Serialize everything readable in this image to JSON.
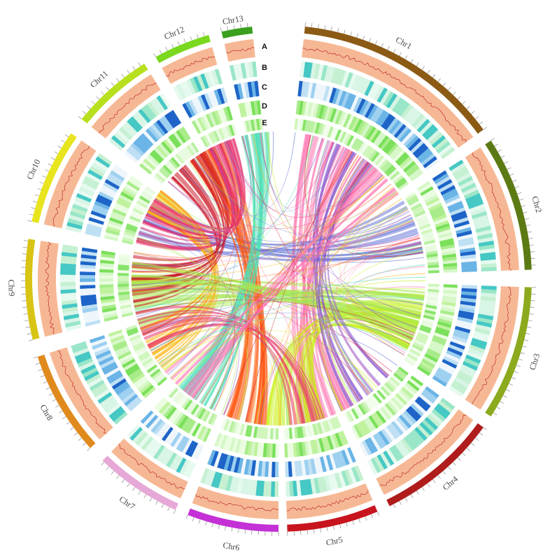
{
  "chromosomes": [
    {
      "name": "Chr1",
      "color": "#8b5a14"
    },
    {
      "name": "Chr2",
      "color": "#5c7a14"
    },
    {
      "name": "Chr3",
      "color": "#8caa1e"
    },
    {
      "name": "Chr4",
      "color": "#b01c1c"
    },
    {
      "name": "Chr5",
      "color": "#c8141e"
    },
    {
      "name": "Chr6",
      "color": "#c431d6"
    },
    {
      "name": "Chr7",
      "color": "#e6a8d6"
    },
    {
      "name": "Chr8",
      "color": "#e08a1e"
    },
    {
      "name": "Chr9",
      "color": "#d8c414"
    },
    {
      "name": "Chr10",
      "color": "#e8e41e"
    },
    {
      "name": "Chr11",
      "color": "#b8e01e"
    },
    {
      "name": "Chr12",
      "color": "#7ad81e"
    },
    {
      "name": "Chr13",
      "color": "#3aa01e"
    }
  ],
  "tracks": [
    "A",
    "B",
    "C",
    "D",
    "E"
  ],
  "link_colors": [
    "#e8336e",
    "#cc1c28",
    "#ff5a14",
    "#ffb414",
    "#c8f014",
    "#a8e850",
    "#50e0b8",
    "#6a78d8",
    "#ff78b4",
    "#8a5ad0"
  ]
}
